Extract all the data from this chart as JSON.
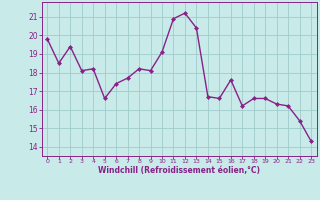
{
  "x": [
    0,
    1,
    2,
    3,
    4,
    5,
    6,
    7,
    8,
    9,
    10,
    11,
    12,
    13,
    14,
    15,
    16,
    17,
    18,
    19,
    20,
    21,
    22,
    23
  ],
  "y": [
    19.8,
    18.5,
    19.4,
    18.1,
    18.2,
    16.6,
    17.4,
    17.7,
    18.2,
    18.1,
    19.1,
    20.9,
    21.2,
    20.4,
    16.7,
    16.6,
    17.6,
    16.2,
    16.6,
    16.6,
    16.3,
    16.2,
    15.4,
    14.3
  ],
  "line_color": "#882288",
  "marker": "D",
  "marker_size": 2.0,
  "line_width": 1.0,
  "bg_color": "#C8EAE8",
  "grid_color": "#A0CCCC",
  "xlabel": "Windchill (Refroidissement éolien,°C)",
  "xlabel_color": "#882288",
  "tick_color": "#882288",
  "spine_color": "#882288",
  "ylim": [
    13.5,
    21.8
  ],
  "xlim": [
    -0.5,
    23.5
  ],
  "yticks": [
    14,
    15,
    16,
    17,
    18,
    19,
    20,
    21
  ],
  "xticks": [
    0,
    1,
    2,
    3,
    4,
    5,
    6,
    7,
    8,
    9,
    10,
    11,
    12,
    13,
    14,
    15,
    16,
    17,
    18,
    19,
    20,
    21,
    22,
    23
  ]
}
